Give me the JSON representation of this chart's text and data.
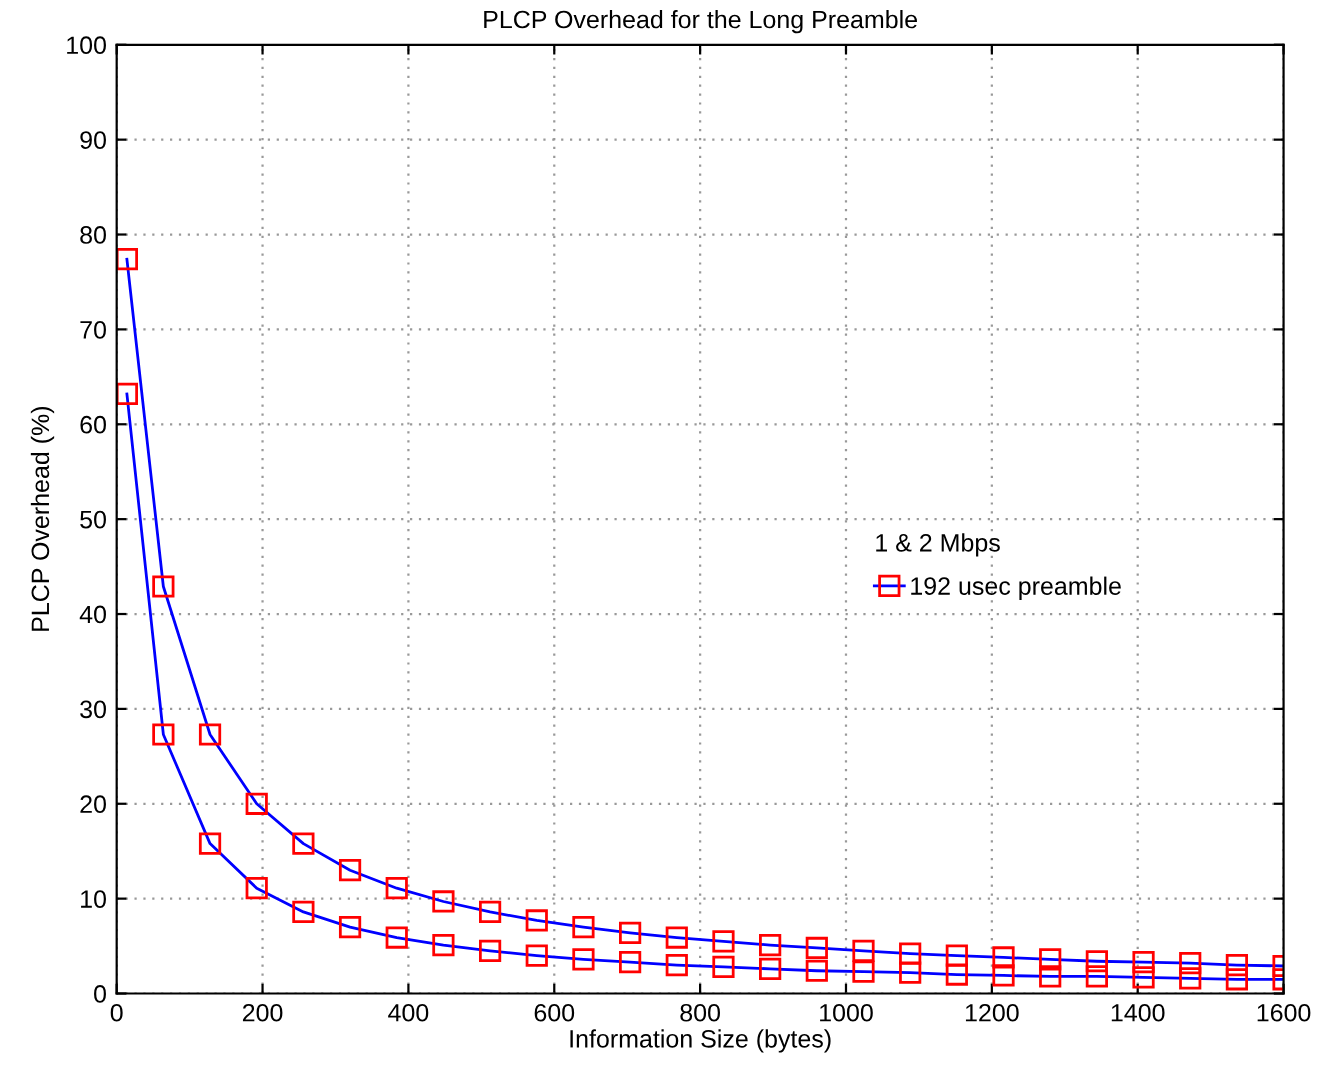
{
  "chart_data": {
    "type": "line",
    "title": "PLCP Overhead for the Long Preamble",
    "xlabel": "Information Size (bytes)",
    "ylabel": "PLCP Overhead (%)",
    "x": [
      14,
      64,
      128,
      192,
      256,
      320,
      384,
      448,
      512,
      576,
      640,
      704,
      768,
      832,
      896,
      960,
      1024,
      1088,
      1152,
      1216,
      1280,
      1344,
      1408,
      1472,
      1536,
      1600
    ],
    "series": [
      {
        "name": "192 usec preamble",
        "color": "#ff0000",
        "values": [
          77.4,
          42.9,
          27.3,
          20.0,
          15.8,
          13.0,
          11.1,
          9.7,
          8.6,
          7.7,
          7.0,
          6.4,
          5.9,
          5.5,
          5.1,
          4.8,
          4.5,
          4.2,
          4.0,
          3.8,
          3.6,
          3.4,
          3.3,
          3.2,
          3.0,
          2.9
        ]
      },
      {
        "color": "#ff0000",
        "values": [
          63.2,
          27.3,
          15.8,
          11.1,
          8.6,
          7.0,
          5.9,
          5.1,
          4.5,
          4.0,
          3.6,
          3.3,
          3.0,
          2.8,
          2.6,
          2.4,
          2.3,
          2.2,
          2.0,
          1.9,
          1.8,
          1.8,
          1.7,
          1.6,
          1.5,
          1.5
        ]
      }
    ],
    "legend_title": "1 & 2 Mbps",
    "legend": "right",
    "xlim": [
      0,
      1600
    ],
    "ylim": [
      0,
      100
    ],
    "xticks": [
      0,
      200,
      400,
      600,
      800,
      1000,
      1200,
      1400,
      1600
    ],
    "yticks": [
      0,
      10,
      20,
      30,
      40,
      50,
      60,
      70,
      80,
      90,
      100
    ],
    "grid": true,
    "marker": "square",
    "line_style": "solid"
  }
}
